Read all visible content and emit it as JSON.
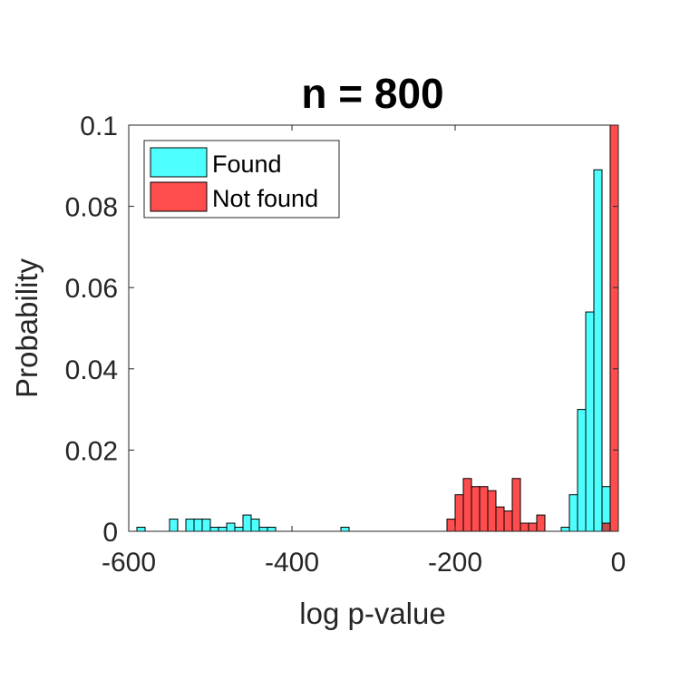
{
  "chart_data": {
    "type": "bar",
    "title": "n = 800",
    "xlabel": "log p-value",
    "ylabel": "Probability",
    "xlim": [
      -600,
      0
    ],
    "ylim": [
      0,
      0.1
    ],
    "xticks": [
      -600,
      -400,
      -200,
      0
    ],
    "xtick_labels": [
      "-600",
      "-400",
      "-200",
      "0"
    ],
    "yticks": [
      0,
      0.02,
      0.04,
      0.06,
      0.08,
      0.1
    ],
    "ytick_labels": [
      "0",
      "0.02",
      "0.04",
      "0.06",
      "0.08",
      "0.1"
    ],
    "legend_position": "top-left",
    "bin_width": 10,
    "series": [
      {
        "name": "Found",
        "color": "#4dffff",
        "bins": [
          {
            "x0": -590,
            "value": 0.001
          },
          {
            "x0": -550,
            "value": 0.003
          },
          {
            "x0": -530,
            "value": 0.003
          },
          {
            "x0": -520,
            "value": 0.003
          },
          {
            "x0": -510,
            "value": 0.003
          },
          {
            "x0": -500,
            "value": 0.001
          },
          {
            "x0": -490,
            "value": 0.001
          },
          {
            "x0": -480,
            "value": 0.002
          },
          {
            "x0": -470,
            "value": 0.001
          },
          {
            "x0": -460,
            "value": 0.004
          },
          {
            "x0": -450,
            "value": 0.003
          },
          {
            "x0": -440,
            "value": 0.001
          },
          {
            "x0": -430,
            "value": 0.001
          },
          {
            "x0": -340,
            "value": 0.001
          },
          {
            "x0": -70,
            "value": 0.001
          },
          {
            "x0": -60,
            "value": 0.009
          },
          {
            "x0": -50,
            "value": 0.03
          },
          {
            "x0": -40,
            "value": 0.054
          },
          {
            "x0": -30,
            "value": 0.089
          },
          {
            "x0": -20,
            "value": 0.011
          }
        ]
      },
      {
        "name": "Not found",
        "color": "#ff4d4d",
        "bins": [
          {
            "x0": -210,
            "value": 0.003
          },
          {
            "x0": -200,
            "value": 0.009
          },
          {
            "x0": -190,
            "value": 0.013
          },
          {
            "x0": -180,
            "value": 0.011
          },
          {
            "x0": -170,
            "value": 0.011
          },
          {
            "x0": -160,
            "value": 0.01
          },
          {
            "x0": -150,
            "value": 0.006
          },
          {
            "x0": -140,
            "value": 0.005
          },
          {
            "x0": -130,
            "value": 0.013
          },
          {
            "x0": -120,
            "value": 0.002
          },
          {
            "x0": -110,
            "value": 0.002
          },
          {
            "x0": -100,
            "value": 0.004
          },
          {
            "x0": -20,
            "value": 0.002
          },
          {
            "x0": -10,
            "value": 0.1
          }
        ]
      }
    ],
    "overlap_color": "#bf4d4d"
  }
}
